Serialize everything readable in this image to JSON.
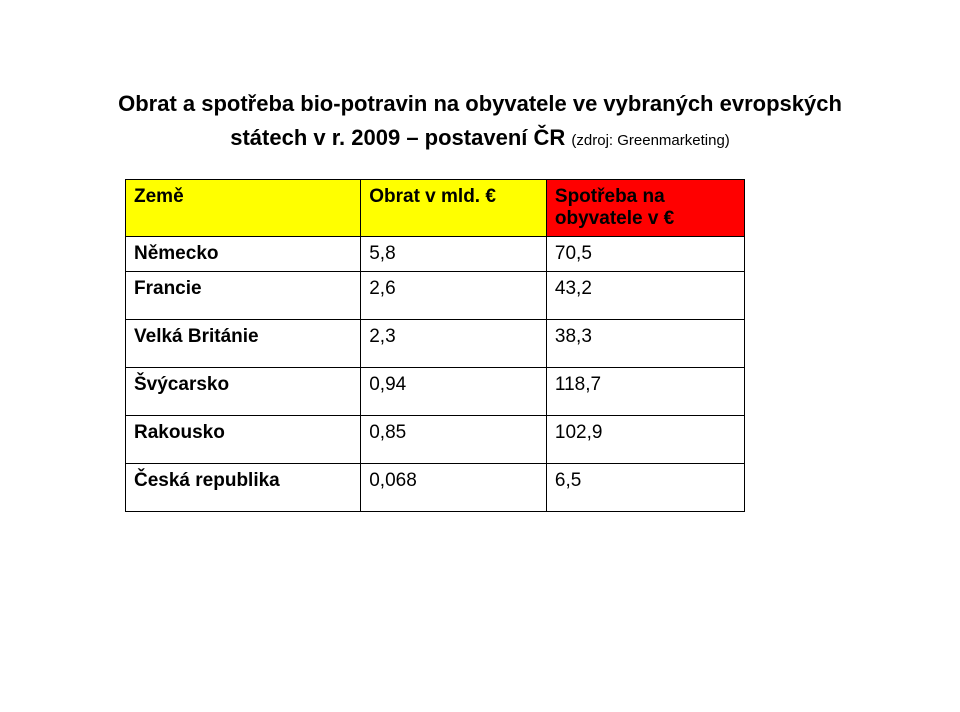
{
  "title": "Obrat a spotřeba bio-potravin na obyvatele ve vybraných evropských",
  "subtitle_bold": "státech v r.  2009 – postavení ČR ",
  "subtitle_source": "(zdroj: Greenmarketing)",
  "table": {
    "columns": [
      {
        "label": "Země",
        "bg_color": "#ffff00"
      },
      {
        "label": "Obrat  v mld. €",
        "bg_color": "#ffff00"
      },
      {
        "label": "Spotřeba na obyvatele v €",
        "bg_color": "#ff0000"
      }
    ],
    "rows": [
      {
        "country": "Německo",
        "turnover": "5,8",
        "consumption": "70,5"
      },
      {
        "country": "Francie",
        "turnover": "2,6",
        "consumption": "43,2"
      },
      {
        "country": "Velká Británie",
        "turnover": "2,3",
        "consumption": "38,3"
      },
      {
        "country": "Švýcarsko",
        "turnover": "0,94",
        "consumption": "118,7"
      },
      {
        "country": "Rakousko",
        "turnover": "0,85",
        "consumption": "102,9"
      },
      {
        "country": "Česká republika",
        "turnover": "0,068",
        "consumption": "6,5"
      }
    ],
    "border_color": "#000000",
    "font_size": 19
  },
  "background_color": "#ffffff"
}
